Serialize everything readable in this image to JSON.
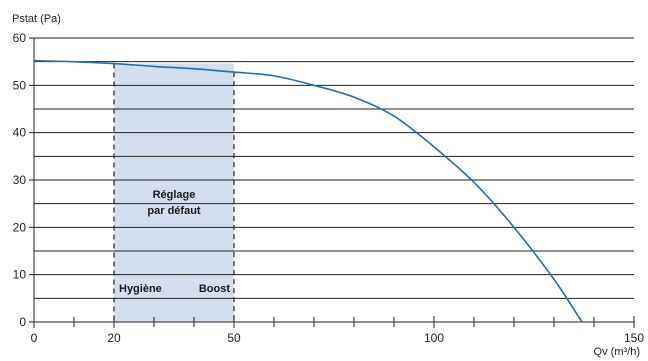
{
  "chart_data": {
    "type": "line",
    "title": "",
    "ylabel": "Pstat (Pa)",
    "xlabel": "Qv (m³/h)",
    "xlim": [
      0,
      150
    ],
    "ylim": [
      0,
      60
    ],
    "x_ticks": [
      {
        "value": 0,
        "label": "0"
      },
      {
        "value": 20,
        "label": "20"
      },
      {
        "value": 50,
        "label": "50"
      },
      {
        "value": 100,
        "label": "100"
      },
      {
        "value": 150,
        "label": "150"
      }
    ],
    "x_minor_ticks": [
      10,
      30,
      40,
      60,
      70,
      80,
      90,
      110,
      120,
      130,
      140
    ],
    "y_ticks": [
      {
        "value": 0,
        "label": "0"
      },
      {
        "value": 10,
        "label": "10"
      },
      {
        "value": 20,
        "label": "20"
      },
      {
        "value": 30,
        "label": "30"
      },
      {
        "value": 40,
        "label": "40"
      },
      {
        "value": 50,
        "label": "50"
      },
      {
        "value": 60,
        "label": "60"
      }
    ],
    "grid_lines_y": [
      0,
      5,
      10,
      15,
      20,
      25,
      30,
      35,
      40,
      45,
      50,
      55,
      60
    ],
    "grid": "horizontal",
    "series": [
      {
        "name": "",
        "color": "#1f6fb5",
        "x": [
          0,
          10,
          20,
          30,
          40,
          50,
          60,
          70,
          80,
          90,
          100,
          110,
          120,
          130,
          137
        ],
        "y": [
          55.2,
          55.0,
          54.6,
          54.0,
          53.5,
          52.8,
          52.0,
          50.0,
          47.5,
          43.5,
          37.0,
          29.5,
          20.0,
          9.0,
          0
        ]
      }
    ],
    "shaded_region": {
      "x_start": 20,
      "x_end": 50,
      "color": "#d3deef",
      "label_lines": [
        "Réglage",
        "par défaut"
      ],
      "left_label": "Hygiène",
      "right_label": "Boost"
    }
  }
}
